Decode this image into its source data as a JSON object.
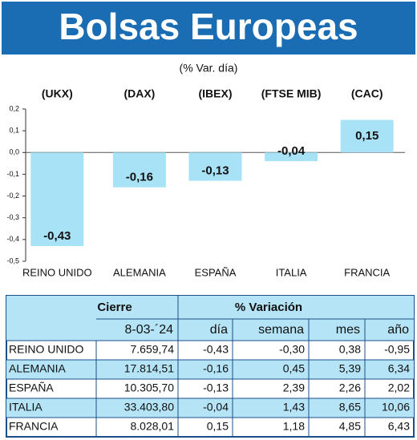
{
  "chart_data": {
    "type": "bar",
    "title": "Bolsas Europeas",
    "subtitle": "(% Var. día)",
    "index_labels": [
      "(UKX)",
      "(DAX)",
      "(IBEX)",
      "(FTSE MIB)",
      "(CAC)"
    ],
    "categories": [
      "REINO UNIDO",
      "ALEMANIA",
      "ESPAÑA",
      "ITALIA",
      "FRANCIA"
    ],
    "values": [
      -0.43,
      -0.16,
      -0.13,
      -0.04,
      0.15
    ],
    "value_labels": [
      "-0,43",
      "-0,16",
      "-0,13",
      "-0,04",
      "0,15"
    ],
    "color": "#a8e2f6",
    "ylim": [
      -0.5,
      0.2
    ],
    "yticks": [
      {
        "value": 0.2,
        "label": "0,2"
      },
      {
        "value": 0.1,
        "label": "0,1"
      },
      {
        "value": 0,
        "label": "0,0"
      },
      {
        "value": -0.1,
        "label": "-0,1"
      },
      {
        "value": -0.2,
        "label": "-0,2"
      },
      {
        "value": -0.3,
        "label": "-0,3"
      },
      {
        "value": -0.4,
        "label": "-0,4"
      },
      {
        "value": -0.5,
        "label": "-0,5"
      }
    ]
  },
  "table": {
    "group_headers": [
      "Cierre",
      "% Variación"
    ],
    "header": [
      "8-03-´24",
      "día",
      "semana",
      "mes",
      "año"
    ],
    "rows": [
      [
        "REINO UNIDO",
        "7.659,74",
        "-0,43",
        "-0,30",
        "0,38",
        "-0,95"
      ],
      [
        "ALEMANIA",
        "17.814,51",
        "-0,16",
        "0,45",
        "5,39",
        "6,34"
      ],
      [
        "ESPAÑA",
        "10.305,70",
        "-0,13",
        "2,39",
        "2,26",
        "2,02"
      ],
      [
        "ITALIA",
        "33.403,80",
        "-0,04",
        "1,43",
        "8,65",
        "10,06"
      ],
      [
        "FRANCIA",
        "8.028,01",
        "0,15",
        "1,18",
        "4,85",
        "6,43"
      ]
    ]
  }
}
